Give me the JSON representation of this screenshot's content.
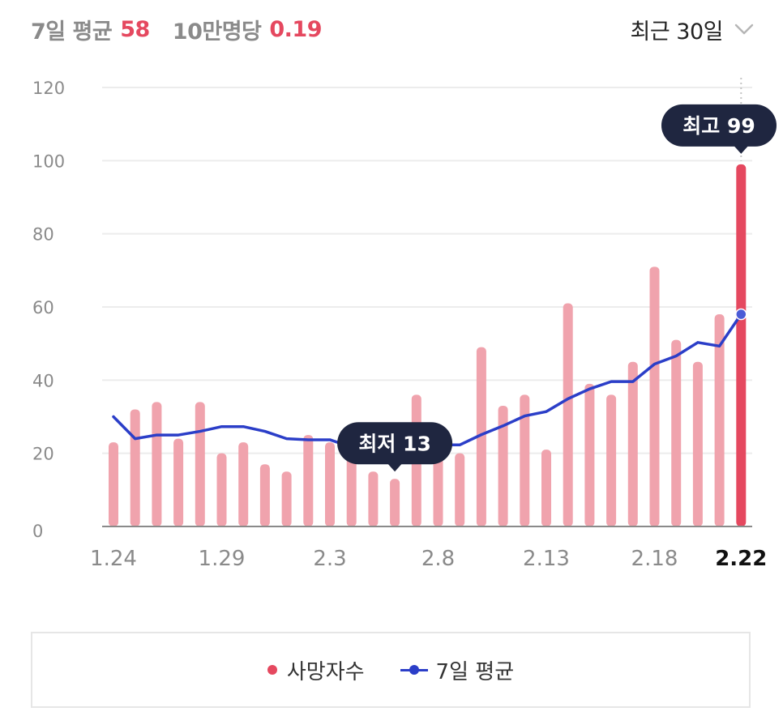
{
  "header": {
    "avg_label": "7일 평균",
    "avg_value": "58",
    "per_label": "10만명당",
    "per_value": "0.19",
    "period_label": "최근 30일"
  },
  "colors": {
    "bar": "#f0a3ad",
    "bar_highlight": "#e5485f",
    "line": "#2b3ec8",
    "accent": "#e5485f",
    "tooltip_bg": "#1f2640",
    "grid": "#ececec"
  },
  "icons": {
    "period_toggle": "chevron-down-icon"
  },
  "chart_data": {
    "type": "bar",
    "x": [
      "1.24",
      "1.25",
      "1.26",
      "1.27",
      "1.28",
      "1.29",
      "1.30",
      "1.31",
      "2.1",
      "2.2",
      "2.3",
      "2.4",
      "2.5",
      "2.6",
      "2.7",
      "2.8",
      "2.9",
      "2.10",
      "2.11",
      "2.12",
      "2.13",
      "2.14",
      "2.15",
      "2.16",
      "2.17",
      "2.18",
      "2.19",
      "2.20",
      "2.21",
      "2.22"
    ],
    "tick_labels": [
      "1.24",
      "1.29",
      "2.3",
      "2.8",
      "2.13",
      "2.18",
      "2.22"
    ],
    "y_ticks": [
      "0",
      "20",
      "40",
      "60",
      "80",
      "100",
      "120"
    ],
    "ylim": [
      0,
      120
    ],
    "series": [
      {
        "name": "사망자수",
        "type": "bar",
        "values": [
          23,
          32,
          34,
          24,
          34,
          20,
          23,
          17,
          15,
          25,
          23,
          22,
          15,
          13,
          36,
          25,
          20,
          49,
          33,
          36,
          21,
          61,
          39,
          36,
          45,
          71,
          51,
          45,
          58,
          99
        ]
      },
      {
        "name": "7일 평균",
        "type": "line",
        "values": [
          30,
          24,
          25,
          25,
          26,
          27.3,
          27.3,
          26,
          24,
          23.7,
          23.7,
          21.7,
          20,
          19.4,
          21,
          22.3,
          22.3,
          25.1,
          27.5,
          30.2,
          31.4,
          34.9,
          37.6,
          39.6,
          39.6,
          44.4,
          46.6,
          50.3,
          49.3,
          58
        ]
      }
    ],
    "annotations": [
      {
        "label": "최저 13",
        "x": "2.6"
      },
      {
        "label": "최고 99",
        "x": "2.22"
      }
    ],
    "highlight_x": "2.22",
    "legend": [
      "사망자수",
      "7일 평균"
    ],
    "grid": true,
    "legend_position": "bottom"
  }
}
